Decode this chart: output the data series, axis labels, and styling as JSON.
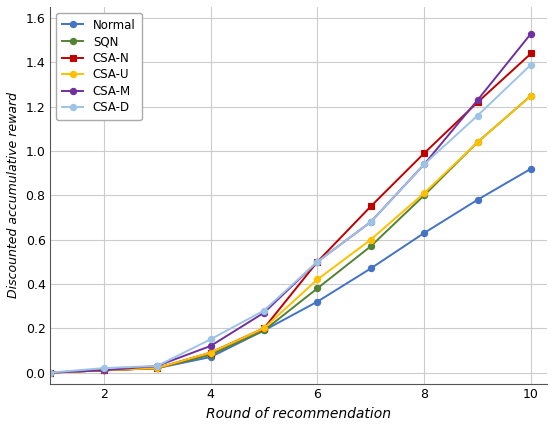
{
  "x": [
    1,
    2,
    3,
    4,
    5,
    6,
    7,
    8,
    9,
    10
  ],
  "series": [
    {
      "label": "Normal",
      "color": "#4472c4",
      "marker": "o",
      "values": [
        0.0,
        0.01,
        0.02,
        0.07,
        0.19,
        0.32,
        0.47,
        0.63,
        0.78,
        0.92
      ]
    },
    {
      "label": "SQN",
      "color": "#548235",
      "marker": "o",
      "values": [
        0.0,
        0.01,
        0.02,
        0.08,
        0.19,
        0.38,
        0.57,
        0.8,
        1.04,
        1.25
      ]
    },
    {
      "label": "CSA-N",
      "color": "#c00000",
      "marker": "s",
      "values": [
        0.0,
        0.01,
        0.02,
        0.09,
        0.2,
        0.5,
        0.75,
        0.99,
        1.22,
        1.44
      ]
    },
    {
      "label": "CSA-U",
      "color": "#ffc000",
      "marker": "o",
      "values": [
        0.0,
        0.01,
        0.02,
        0.09,
        0.2,
        0.42,
        0.6,
        0.81,
        1.04,
        1.25
      ]
    },
    {
      "label": "CSA-M",
      "color": "#7030a0",
      "marker": "o",
      "values": [
        0.0,
        0.01,
        0.03,
        0.12,
        0.27,
        0.5,
        0.68,
        0.94,
        1.23,
        1.53
      ]
    },
    {
      "label": "CSA-D",
      "color": "#9dc3e6",
      "marker": "o",
      "values": [
        0.0,
        0.02,
        0.03,
        0.15,
        0.28,
        0.5,
        0.68,
        0.94,
        1.16,
        1.39
      ]
    }
  ],
  "xlabel": "Round of recommendation",
  "ylabel": "Discounted accumulative reward",
  "xlim": [
    1,
    10.3
  ],
  "ylim": [
    -0.05,
    1.65
  ],
  "xticks": [
    2,
    4,
    6,
    8,
    10
  ],
  "yticks": [
    0.0,
    0.2,
    0.4,
    0.6,
    0.8,
    1.0,
    1.2,
    1.4,
    1.6
  ],
  "grid_color": "#cccccc",
  "background_color": "#ffffff",
  "legend_loc": "upper left"
}
